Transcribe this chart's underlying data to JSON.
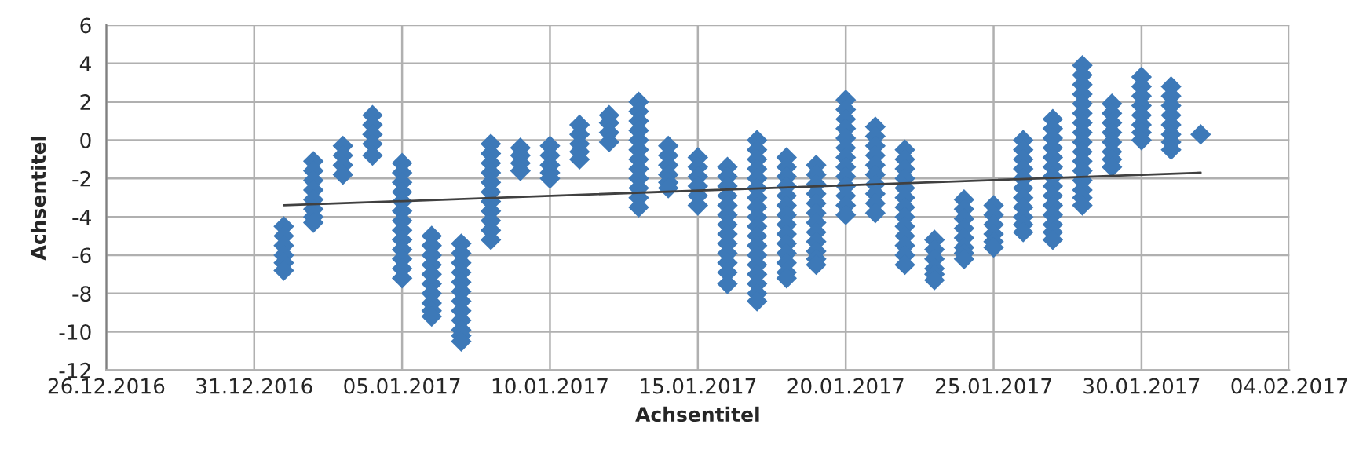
{
  "chart_data": {
    "type": "scatter",
    "xlabel": "Achsentitel",
    "ylabel": "Achsentitel",
    "xlim": [
      "2016-12-26",
      "2017-02-04"
    ],
    "xticks": [
      {
        "value": "2016-12-26",
        "label": "26.12.2016"
      },
      {
        "value": "2016-12-31",
        "label": "31.12.2016"
      },
      {
        "value": "2017-01-05",
        "label": "05.01.2017"
      },
      {
        "value": "2017-01-10",
        "label": "10.01.2017"
      },
      {
        "value": "2017-01-15",
        "label": "15.01.2017"
      },
      {
        "value": "2017-01-20",
        "label": "20.01.2017"
      },
      {
        "value": "2017-01-25",
        "label": "25.01.2017"
      },
      {
        "value": "2017-01-30",
        "label": "30.01.2017"
      },
      {
        "value": "2017-02-04",
        "label": "04.02.2017"
      }
    ],
    "ylim": [
      -12,
      6
    ],
    "yticks": [
      -12,
      -10,
      -8,
      -6,
      -4,
      -2,
      0,
      2,
      4,
      6
    ],
    "grid": true,
    "series": [
      {
        "color": "#3d79b8",
        "marker": "diamond",
        "x": [
          "2017-01-01",
          "2017-01-01",
          "2017-01-01",
          "2017-01-01",
          "2017-01-01",
          "2017-01-01",
          "2017-01-02",
          "2017-01-02",
          "2017-01-02",
          "2017-01-02",
          "2017-01-02",
          "2017-01-02",
          "2017-01-02",
          "2017-01-02",
          "2017-01-03",
          "2017-01-03",
          "2017-01-03",
          "2017-01-03",
          "2017-01-04",
          "2017-01-04",
          "2017-01-04",
          "2017-01-04",
          "2017-01-04",
          "2017-01-05",
          "2017-01-05",
          "2017-01-05",
          "2017-01-05",
          "2017-01-05",
          "2017-01-05",
          "2017-01-05",
          "2017-01-05",
          "2017-01-05",
          "2017-01-05",
          "2017-01-05",
          "2017-01-05",
          "2017-01-05",
          "2017-01-06",
          "2017-01-06",
          "2017-01-06",
          "2017-01-06",
          "2017-01-06",
          "2017-01-06",
          "2017-01-06",
          "2017-01-06",
          "2017-01-06",
          "2017-01-06",
          "2017-01-07",
          "2017-01-07",
          "2017-01-07",
          "2017-01-07",
          "2017-01-07",
          "2017-01-07",
          "2017-01-07",
          "2017-01-07",
          "2017-01-07",
          "2017-01-07",
          "2017-01-07",
          "2017-01-07",
          "2017-01-08",
          "2017-01-08",
          "2017-01-08",
          "2017-01-08",
          "2017-01-08",
          "2017-01-08",
          "2017-01-08",
          "2017-01-08",
          "2017-01-08",
          "2017-01-08",
          "2017-01-08",
          "2017-01-09",
          "2017-01-09",
          "2017-01-09",
          "2017-01-09",
          "2017-01-10",
          "2017-01-10",
          "2017-01-10",
          "2017-01-10",
          "2017-01-10",
          "2017-01-11",
          "2017-01-11",
          "2017-01-11",
          "2017-01-11",
          "2017-01-11",
          "2017-01-12",
          "2017-01-12",
          "2017-01-12",
          "2017-01-12",
          "2017-01-13",
          "2017-01-13",
          "2017-01-13",
          "2017-01-13",
          "2017-01-13",
          "2017-01-13",
          "2017-01-13",
          "2017-01-13",
          "2017-01-13",
          "2017-01-13",
          "2017-01-13",
          "2017-01-13",
          "2017-01-14",
          "2017-01-14",
          "2017-01-14",
          "2017-01-14",
          "2017-01-14",
          "2017-01-14",
          "2017-01-15",
          "2017-01-15",
          "2017-01-15",
          "2017-01-15",
          "2017-01-15",
          "2017-01-15",
          "2017-01-16",
          "2017-01-16",
          "2017-01-16",
          "2017-01-16",
          "2017-01-16",
          "2017-01-16",
          "2017-01-16",
          "2017-01-16",
          "2017-01-16",
          "2017-01-16",
          "2017-01-16",
          "2017-01-16",
          "2017-01-16",
          "2017-01-17",
          "2017-01-17",
          "2017-01-17",
          "2017-01-17",
          "2017-01-17",
          "2017-01-17",
          "2017-01-17",
          "2017-01-17",
          "2017-01-17",
          "2017-01-17",
          "2017-01-17",
          "2017-01-17",
          "2017-01-17",
          "2017-01-17",
          "2017-01-17",
          "2017-01-17",
          "2017-01-17",
          "2017-01-17",
          "2017-01-18",
          "2017-01-18",
          "2017-01-18",
          "2017-01-18",
          "2017-01-18",
          "2017-01-18",
          "2017-01-18",
          "2017-01-18",
          "2017-01-18",
          "2017-01-18",
          "2017-01-18",
          "2017-01-18",
          "2017-01-18",
          "2017-01-18",
          "2017-01-19",
          "2017-01-19",
          "2017-01-19",
          "2017-01-19",
          "2017-01-19",
          "2017-01-19",
          "2017-01-19",
          "2017-01-19",
          "2017-01-19",
          "2017-01-19",
          "2017-01-19",
          "2017-01-19",
          "2017-01-20",
          "2017-01-20",
          "2017-01-20",
          "2017-01-20",
          "2017-01-20",
          "2017-01-20",
          "2017-01-20",
          "2017-01-20",
          "2017-01-20",
          "2017-01-20",
          "2017-01-20",
          "2017-01-20",
          "2017-01-20",
          "2017-01-21",
          "2017-01-21",
          "2017-01-21",
          "2017-01-21",
          "2017-01-21",
          "2017-01-21",
          "2017-01-21",
          "2017-01-21",
          "2017-01-21",
          "2017-01-21",
          "2017-01-22",
          "2017-01-22",
          "2017-01-22",
          "2017-01-22",
          "2017-01-22",
          "2017-01-22",
          "2017-01-22",
          "2017-01-22",
          "2017-01-22",
          "2017-01-22",
          "2017-01-22",
          "2017-01-22",
          "2017-01-22",
          "2017-01-23",
          "2017-01-23",
          "2017-01-23",
          "2017-01-23",
          "2017-01-23",
          "2017-01-23",
          "2017-01-24",
          "2017-01-24",
          "2017-01-24",
          "2017-01-24",
          "2017-01-24",
          "2017-01-24",
          "2017-01-24",
          "2017-01-24",
          "2017-01-25",
          "2017-01-25",
          "2017-01-25",
          "2017-01-25",
          "2017-01-25",
          "2017-01-25",
          "2017-01-26",
          "2017-01-26",
          "2017-01-26",
          "2017-01-26",
          "2017-01-26",
          "2017-01-26",
          "2017-01-26",
          "2017-01-26",
          "2017-01-26",
          "2017-01-26",
          "2017-01-26",
          "2017-01-27",
          "2017-01-27",
          "2017-01-27",
          "2017-01-27",
          "2017-01-27",
          "2017-01-27",
          "2017-01-27",
          "2017-01-27",
          "2017-01-27",
          "2017-01-27",
          "2017-01-27",
          "2017-01-27",
          "2017-01-27",
          "2017-01-27",
          "2017-01-28",
          "2017-01-28",
          "2017-01-28",
          "2017-01-28",
          "2017-01-28",
          "2017-01-28",
          "2017-01-28",
          "2017-01-28",
          "2017-01-28",
          "2017-01-28",
          "2017-01-28",
          "2017-01-28",
          "2017-01-28",
          "2017-01-28",
          "2017-01-28",
          "2017-01-28",
          "2017-01-29",
          "2017-01-29",
          "2017-01-29",
          "2017-01-29",
          "2017-01-29",
          "2017-01-29",
          "2017-01-29",
          "2017-01-29",
          "2017-01-30",
          "2017-01-30",
          "2017-01-30",
          "2017-01-30",
          "2017-01-30",
          "2017-01-30",
          "2017-01-30",
          "2017-01-30",
          "2017-01-31",
          "2017-01-31",
          "2017-01-31",
          "2017-01-31",
          "2017-01-31",
          "2017-01-31",
          "2017-01-31",
          "2017-01-31",
          "2017-02-01"
        ],
        "values": [
          -4.5,
          -5.0,
          -5.5,
          -6.0,
          -6.4,
          -6.8,
          -1.1,
          -1.6,
          -2.1,
          -2.6,
          -3.1,
          -3.6,
          -4.0,
          -4.3,
          -0.3,
          -0.8,
          -1.3,
          -1.8,
          1.3,
          0.8,
          0.3,
          -0.2,
          -0.8,
          -1.2,
          -1.7,
          -2.2,
          -2.7,
          -3.2,
          -3.7,
          -4.2,
          -4.7,
          -5.2,
          -5.7,
          -6.2,
          -6.7,
          -7.2,
          -5.0,
          -5.5,
          -6.0,
          -6.5,
          -7.0,
          -7.5,
          -8.0,
          -8.5,
          -8.9,
          -9.2,
          -5.4,
          -5.9,
          -6.4,
          -6.9,
          -7.4,
          -7.9,
          -8.4,
          -8.9,
          -9.4,
          -9.9,
          -10.2,
          -10.5,
          -0.2,
          -0.7,
          -1.2,
          -1.7,
          -2.2,
          -2.7,
          -3.2,
          -3.7,
          -4.2,
          -4.7,
          -5.2,
          -0.4,
          -0.8,
          -1.2,
          -1.6,
          -0.3,
          -0.8,
          -1.3,
          -1.7,
          -2.0,
          0.8,
          0.3,
          -0.2,
          -0.6,
          -1.0,
          1.3,
          0.9,
          0.4,
          -0.1,
          2.0,
          1.5,
          1.0,
          0.5,
          0.0,
          -0.5,
          -1.0,
          -1.5,
          -2.0,
          -2.5,
          -3.0,
          -3.5,
          -0.3,
          -0.8,
          -1.3,
          -1.8,
          -2.2,
          -2.5,
          -0.9,
          -1.4,
          -1.9,
          -2.4,
          -2.9,
          -3.4,
          -1.4,
          -1.9,
          -2.4,
          -2.9,
          -3.4,
          -3.9,
          -4.4,
          -4.9,
          -5.4,
          -5.9,
          -6.4,
          -6.9,
          -7.5,
          0.0,
          -0.5,
          -1.0,
          -1.5,
          -2.0,
          -2.5,
          -3.0,
          -3.5,
          -4.0,
          -4.5,
          -5.0,
          -5.5,
          -6.0,
          -6.5,
          -7.0,
          -7.5,
          -8.0,
          -8.4,
          -0.9,
          -1.4,
          -1.9,
          -2.4,
          -2.9,
          -3.4,
          -3.9,
          -4.4,
          -4.9,
          -5.4,
          -5.9,
          -6.4,
          -6.9,
          -7.2,
          -1.3,
          -1.8,
          -2.3,
          -2.8,
          -3.3,
          -3.8,
          -4.3,
          -4.8,
          -5.3,
          -5.8,
          -6.2,
          -6.5,
          2.1,
          1.6,
          1.1,
          0.6,
          0.1,
          -0.4,
          -0.9,
          -1.4,
          -1.9,
          -2.4,
          -2.9,
          -3.4,
          -3.9,
          0.7,
          0.2,
          -0.3,
          -0.8,
          -1.3,
          -1.8,
          -2.3,
          -2.8,
          -3.3,
          -3.8,
          -0.5,
          -1.0,
          -1.5,
          -2.0,
          -2.5,
          -3.0,
          -3.5,
          -4.0,
          -4.5,
          -5.0,
          -5.5,
          -6.0,
          -6.5,
          -5.2,
          -5.7,
          -6.2,
          -6.7,
          -7.0,
          -7.3,
          -3.1,
          -3.6,
          -4.1,
          -4.6,
          -5.1,
          -5.6,
          -5.9,
          -6.2,
          -3.4,
          -3.9,
          -4.4,
          -4.9,
          -5.3,
          -5.6,
          0.0,
          -0.5,
          -1.0,
          -1.5,
          -2.0,
          -2.5,
          -3.0,
          -3.5,
          -4.0,
          -4.4,
          -4.8,
          1.1,
          0.6,
          0.1,
          -0.4,
          -0.9,
          -1.4,
          -1.9,
          -2.4,
          -2.9,
          -3.4,
          -3.9,
          -4.4,
          -4.8,
          -5.2,
          3.9,
          3.4,
          2.9,
          2.4,
          1.9,
          1.4,
          0.9,
          0.4,
          -0.1,
          -0.6,
          -1.1,
          -1.6,
          -2.1,
          -2.6,
          -3.0,
          -3.4,
          1.9,
          1.4,
          0.9,
          0.4,
          -0.1,
          -0.6,
          -1.0,
          -1.4,
          3.3,
          2.8,
          2.3,
          1.8,
          1.3,
          0.8,
          0.4,
          0.0,
          2.8,
          2.3,
          1.8,
          1.3,
          0.8,
          0.3,
          -0.1,
          -0.5,
          0.3
        ]
      },
      {
        "type": "line",
        "color": "#404040",
        "x": [
          "2017-01-01",
          "2017-02-01"
        ],
        "values": [
          -3.4,
          -1.7
        ]
      }
    ]
  }
}
